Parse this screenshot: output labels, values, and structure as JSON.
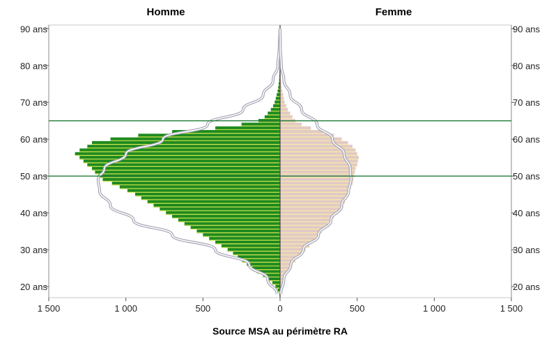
{
  "chart_data": {
    "type": "bar",
    "orientation": "horizontal",
    "sides": [
      "Homme",
      "Femme"
    ],
    "source": "Source MSA au périmètre RA",
    "age_ticks": [
      "20 ans",
      "30 ans",
      "40 ans",
      "50 ans",
      "60 ans",
      "70 ans",
      "80 ans",
      "90 ans"
    ],
    "age_tick_values": [
      20,
      30,
      40,
      50,
      60,
      70,
      80,
      90
    ],
    "count_ticks": [
      "1 500",
      "1 000",
      "500",
      "0",
      "500",
      "1 000",
      "1 500"
    ],
    "count_tick_values": [
      -1500,
      -1000,
      -500,
      0,
      500,
      1000,
      1500
    ],
    "xlim": [
      -1500,
      1500
    ],
    "ylim": [
      17,
      91
    ],
    "reference_ages": [
      65,
      50
    ],
    "colors": {
      "homme": "#1f8a1f",
      "homme_stripe": "#d8e84a",
      "femme": "#e3c9c5",
      "femme_stripe": "#f3efa2",
      "reference_line": "#1f7a3a",
      "curve": "#a4a4b4",
      "center_line": "#555555"
    },
    "series": [
      {
        "name": "Homme",
        "ages": [
          18,
          19,
          20,
          21,
          22,
          23,
          24,
          25,
          26,
          27,
          28,
          29,
          30,
          31,
          32,
          33,
          34,
          35,
          36,
          37,
          38,
          39,
          40,
          41,
          42,
          43,
          44,
          45,
          46,
          47,
          48,
          49,
          50,
          51,
          52,
          53,
          54,
          55,
          56,
          57,
          58,
          59,
          60,
          61,
          62,
          63,
          64,
          65,
          66,
          67,
          68,
          69,
          70,
          71,
          72,
          73,
          74,
          75,
          76,
          77,
          78,
          79,
          80
        ],
        "values": [
          5,
          15,
          30,
          50,
          80,
          110,
          150,
          180,
          215,
          245,
          275,
          305,
          340,
          380,
          420,
          460,
          500,
          540,
          580,
          620,
          660,
          700,
          740,
          780,
          820,
          860,
          900,
          940,
          990,
          1040,
          1090,
          1150,
          1180,
          1200,
          1220,
          1250,
          1275,
          1300,
          1330,
          1300,
          1250,
          1220,
          1100,
          920,
          700,
          420,
          250,
          140,
          100,
          80,
          60,
          45,
          35,
          28,
          22,
          16,
          12,
          9,
          6,
          5,
          4,
          3,
          2
        ]
      },
      {
        "name": "Femme",
        "ages": [
          18,
          19,
          20,
          21,
          22,
          23,
          24,
          25,
          26,
          27,
          28,
          29,
          30,
          31,
          32,
          33,
          34,
          35,
          36,
          37,
          38,
          39,
          40,
          41,
          42,
          43,
          44,
          45,
          46,
          47,
          48,
          49,
          50,
          51,
          52,
          53,
          54,
          55,
          56,
          57,
          58,
          59,
          60,
          61,
          62,
          63,
          64,
          65,
          66,
          67,
          68,
          69,
          70,
          71,
          72,
          73,
          74,
          75,
          76,
          77,
          78,
          79,
          80
        ],
        "values": [
          2,
          5,
          10,
          15,
          25,
          35,
          50,
          60,
          80,
          100,
          120,
          140,
          165,
          190,
          210,
          230,
          250,
          270,
          290,
          310,
          330,
          350,
          370,
          390,
          410,
          420,
          430,
          440,
          450,
          460,
          470,
          475,
          480,
          485,
          490,
          500,
          505,
          510,
          500,
          490,
          470,
          440,
          400,
          350,
          280,
          200,
          140,
          100,
          80,
          65,
          50,
          40,
          30,
          25,
          20,
          15,
          10,
          8,
          6,
          4,
          3,
          2,
          1
        ]
      }
    ],
    "curve": {
      "ages": [
        18,
        22,
        26,
        30,
        34,
        38,
        42,
        46,
        49,
        52,
        56,
        60,
        64,
        68,
        72,
        76,
        80,
        85,
        90
      ],
      "homme": [
        20,
        80,
        200,
        420,
        700,
        950,
        1100,
        1170,
        1180,
        1140,
        1000,
        760,
        470,
        240,
        110,
        45,
        15,
        5,
        1
      ],
      "femme": [
        5,
        25,
        70,
        150,
        250,
        330,
        400,
        445,
        460,
        455,
        415,
        340,
        240,
        140,
        65,
        25,
        8,
        2,
        0
      ]
    }
  }
}
